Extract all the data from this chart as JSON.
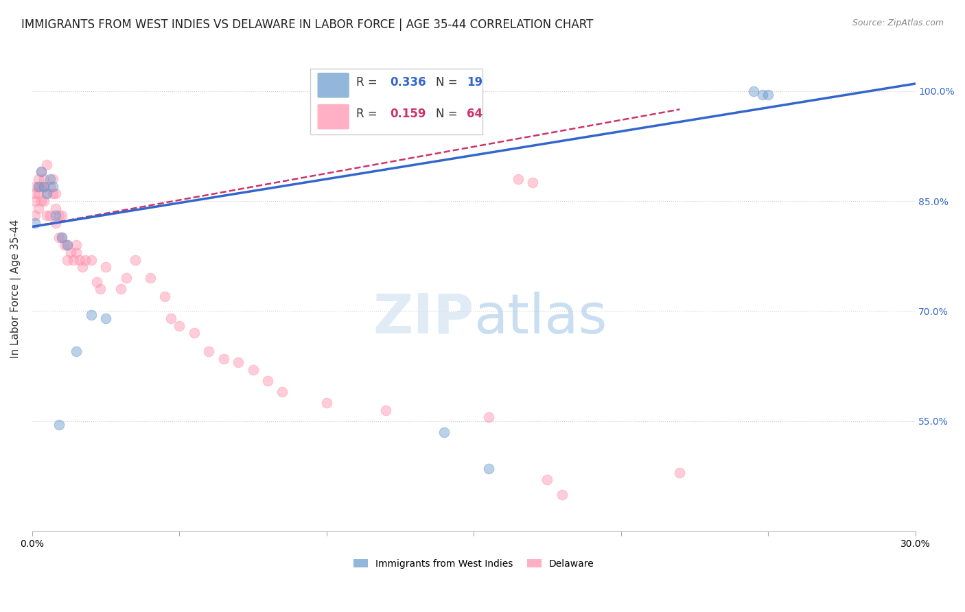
{
  "title": "IMMIGRANTS FROM WEST INDIES VS DELAWARE IN LABOR FORCE | AGE 35-44 CORRELATION CHART",
  "source": "Source: ZipAtlas.com",
  "ylabel": "In Labor Force | Age 35-44",
  "ytick_labels": [
    "100.0%",
    "85.0%",
    "70.0%",
    "55.0%"
  ],
  "ytick_values": [
    1.0,
    0.85,
    0.7,
    0.55
  ],
  "xlim": [
    0.0,
    0.3
  ],
  "ylim": [
    0.4,
    1.06
  ],
  "blue_scatter_x": [
    0.001,
    0.002,
    0.003,
    0.004,
    0.005,
    0.006,
    0.007,
    0.008,
    0.009,
    0.01,
    0.012,
    0.015,
    0.02,
    0.025,
    0.14,
    0.155,
    0.245,
    0.248,
    0.25
  ],
  "blue_scatter_y": [
    0.82,
    0.87,
    0.89,
    0.87,
    0.86,
    0.88,
    0.87,
    0.83,
    0.545,
    0.8,
    0.79,
    0.645,
    0.695,
    0.69,
    0.535,
    0.485,
    1.0,
    0.995,
    0.995
  ],
  "pink_scatter_x": [
    0.001,
    0.001,
    0.001,
    0.001,
    0.002,
    0.002,
    0.002,
    0.002,
    0.003,
    0.003,
    0.003,
    0.004,
    0.004,
    0.004,
    0.005,
    0.005,
    0.005,
    0.006,
    0.006,
    0.007,
    0.007,
    0.008,
    0.008,
    0.008,
    0.009,
    0.009,
    0.01,
    0.01,
    0.011,
    0.012,
    0.012,
    0.013,
    0.014,
    0.015,
    0.015,
    0.016,
    0.017,
    0.018,
    0.02,
    0.022,
    0.023,
    0.025,
    0.03,
    0.032,
    0.035,
    0.04,
    0.045,
    0.047,
    0.05,
    0.055,
    0.06,
    0.065,
    0.07,
    0.075,
    0.08,
    0.085,
    0.1,
    0.12,
    0.155,
    0.165,
    0.17,
    0.175,
    0.18,
    0.22
  ],
  "pink_scatter_y": [
    0.83,
    0.85,
    0.86,
    0.87,
    0.84,
    0.86,
    0.87,
    0.88,
    0.85,
    0.87,
    0.89,
    0.85,
    0.87,
    0.88,
    0.83,
    0.86,
    0.9,
    0.83,
    0.87,
    0.86,
    0.88,
    0.82,
    0.84,
    0.86,
    0.8,
    0.83,
    0.8,
    0.83,
    0.79,
    0.77,
    0.79,
    0.78,
    0.77,
    0.78,
    0.79,
    0.77,
    0.76,
    0.77,
    0.77,
    0.74,
    0.73,
    0.76,
    0.73,
    0.745,
    0.77,
    0.745,
    0.72,
    0.69,
    0.68,
    0.67,
    0.645,
    0.635,
    0.63,
    0.62,
    0.605,
    0.59,
    0.575,
    0.565,
    0.555,
    0.88,
    0.875,
    0.47,
    0.45,
    0.48
  ],
  "blue_line_x": [
    0.0,
    0.3
  ],
  "blue_line_y": [
    0.815,
    1.01
  ],
  "pink_line_x": [
    0.0,
    0.22
  ],
  "pink_line_y": [
    0.815,
    0.975
  ],
  "blue_color": "#6699CC",
  "pink_color": "#FF8FAB",
  "blue_line_color": "#3366CC",
  "pink_line_color": "#CC3366",
  "marker_size": 110,
  "marker_alpha": 0.45,
  "grid_color": "#CCCCCC",
  "background_color": "#FFFFFF",
  "title_fontsize": 12,
  "axis_label_fontsize": 11,
  "tick_fontsize": 10,
  "source_fontsize": 9
}
